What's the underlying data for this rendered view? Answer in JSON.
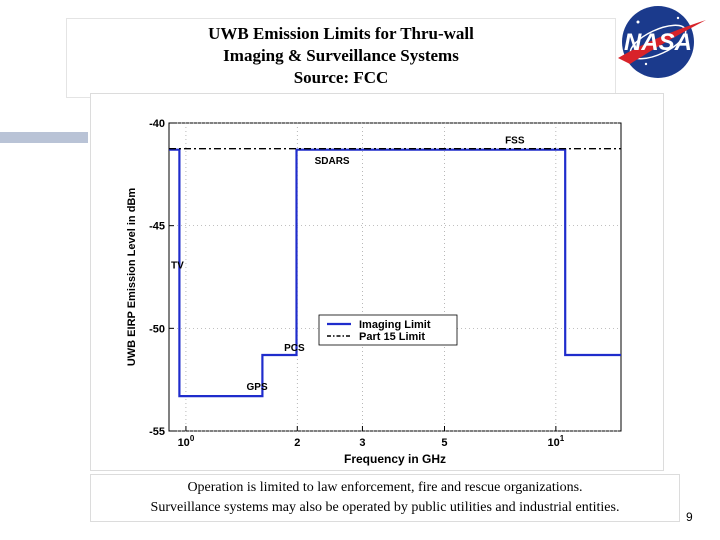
{
  "slide": {
    "title_lines": [
      "UWB Emission Limits for Thru-wall",
      "Imaging & Surveillance Systems",
      "Source: FCC"
    ],
    "caption_lines": [
      "Operation is limited to law enforcement, fire and rescue organizations.",
      "Surveillance systems may also be operated by public utilities and industrial entities."
    ],
    "page_number": "9",
    "logo_text": "NASA",
    "logo_colors": {
      "disk": "#1b3a8c",
      "swoosh": "#d8232a",
      "text": "#ffffff"
    }
  },
  "chart_data": {
    "type": "line",
    "xscale": "log",
    "xlabel": "Frequency in GHz",
    "ylabel": "UWB EIRP Emission Level in dBm",
    "xlim": [
      0.9,
      15
    ],
    "ylim": [
      -55,
      -40
    ],
    "yticks": [
      -40,
      -45,
      -50,
      -55
    ],
    "ytick_labels": [
      "-40",
      "-45",
      "-50",
      "-55"
    ],
    "xticks": [
      {
        "value": 1,
        "base": "10",
        "exp": "0"
      },
      {
        "value": 2,
        "label": "2"
      },
      {
        "value": 3,
        "label": "3"
      },
      {
        "value": 5,
        "label": "5"
      },
      {
        "value": 10,
        "base": "10",
        "exp": "1"
      }
    ],
    "grid": true,
    "legend_position": "center-right",
    "series": [
      {
        "name": "Imaging Limit",
        "style": "solid",
        "color": "#1f2ccc",
        "x": [
          0.9,
          0.96,
          0.96,
          1.61,
          1.61,
          1.99,
          1.99,
          10.6,
          10.6,
          15
        ],
        "y": [
          -41.3,
          -41.3,
          -53.3,
          -53.3,
          -51.3,
          -51.3,
          -41.3,
          -41.3,
          -51.3,
          -51.3
        ]
      },
      {
        "name": "Part 15 Limit",
        "style": "dash-dot",
        "color": "#000000",
        "x": [
          0.9,
          15
        ],
        "y": [
          -41.25,
          -41.25
        ]
      }
    ],
    "annotations": [
      {
        "text": "FSS",
        "x": 7.2,
        "y": -40.8
      },
      {
        "text": "SDARS",
        "x": 2.2,
        "y": -41.8
      },
      {
        "text": "TV",
        "x": 0.9,
        "y": -46.9
      },
      {
        "text": "PCS",
        "x": 1.82,
        "y": -50.9
      },
      {
        "text": "GPS",
        "x": 1.44,
        "y": -52.8
      }
    ]
  }
}
